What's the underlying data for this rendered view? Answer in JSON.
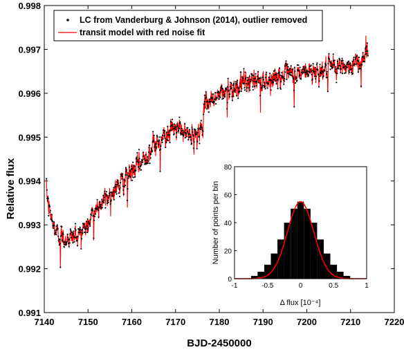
{
  "chart_data": [
    {
      "type": "line",
      "title": "",
      "xlabel": "BJD-2450000",
      "ylabel": "Relative flux",
      "xlim": [
        7140,
        7220
      ],
      "ylim": [
        0.991,
        0.998
      ],
      "xticks": [
        "7140",
        "7150",
        "7160",
        "7170",
        "7180",
        "7190",
        "7200",
        "7210",
        "7220"
      ],
      "yticks": [
        "0.991",
        "0.992",
        "0.993",
        "0.994",
        "0.995",
        "0.996",
        "0.997",
        "0.998"
      ],
      "legend_position": "top-left",
      "grid": false,
      "series": [
        {
          "name": "LC from Vanderburg & Johnson (2014), outlier removed",
          "style": "points",
          "color": "#000000",
          "x": [
            7140.5,
            7141,
            7142,
            7143,
            7144,
            7146,
            7148,
            7150,
            7152,
            7154,
            7156,
            7158,
            7160,
            7162,
            7164,
            7166,
            7168,
            7170,
            7172,
            7174,
            7176,
            7177,
            7179,
            7182,
            7185,
            7188,
            7191,
            7194,
            7197,
            7200,
            7203,
            7206,
            7209,
            7212,
            7214
          ],
          "y": [
            0.9938,
            0.9934,
            0.993,
            0.9928,
            0.9927,
            0.9927,
            0.9928,
            0.993,
            0.9934,
            0.9936,
            0.9938,
            0.994,
            0.9942,
            0.9944,
            0.9947,
            0.9949,
            0.9951,
            0.9952,
            0.9951,
            0.995,
            0.9952,
            0.9958,
            0.9959,
            0.9961,
            0.9962,
            0.9963,
            0.9963,
            0.9964,
            0.9964,
            0.9965,
            0.9965,
            0.9966,
            0.9966,
            0.9967,
            0.997
          ]
        },
        {
          "name": "transit model with red noise fit",
          "style": "line",
          "color": "#ff0000",
          "x": [
            7140.5,
            7141,
            7142,
            7143,
            7144,
            7146,
            7148,
            7150,
            7152,
            7154,
            7156,
            7158,
            7160,
            7162,
            7164,
            7166,
            7168,
            7170,
            7172,
            7174,
            7176,
            7177,
            7179,
            7182,
            7185,
            7188,
            7191,
            7194,
            7197,
            7200,
            7203,
            7206,
            7209,
            7212,
            7214
          ],
          "y": [
            0.9938,
            0.9934,
            0.993,
            0.9928,
            0.9927,
            0.9927,
            0.9928,
            0.993,
            0.9934,
            0.9936,
            0.9938,
            0.994,
            0.9942,
            0.9944,
            0.9947,
            0.9949,
            0.9951,
            0.9952,
            0.9951,
            0.995,
            0.9952,
            0.9958,
            0.9959,
            0.9961,
            0.9962,
            0.9963,
            0.9963,
            0.9964,
            0.9964,
            0.9965,
            0.9965,
            0.9966,
            0.9966,
            0.9967,
            0.997
          ]
        }
      ],
      "transits": [
        {
          "x": 7143.7,
          "depth": 0.0006
        },
        {
          "x": 7151.3,
          "depth": 0.0007
        },
        {
          "x": 7159.0,
          "depth": 0.0007
        },
        {
          "x": 7166.5,
          "depth": 0.0007
        },
        {
          "x": 7174.2,
          "depth": 0.0007
        },
        {
          "x": 7181.8,
          "depth": 0.0008
        },
        {
          "x": 7189.4,
          "depth": 0.0006
        },
        {
          "x": 7197.1,
          "depth": 0.0008
        },
        {
          "x": 7204.8,
          "depth": 0.0008
        },
        {
          "x": 7212.4,
          "depth": 0.0006
        }
      ]
    },
    {
      "type": "bar",
      "title": "",
      "xlabel": "Δ flux [10⁻⁴]",
      "ylabel": "Number of points per bin",
      "xlim": [
        -1,
        1
      ],
      "ylim": [
        0,
        80
      ],
      "xticks": [
        "-1",
        "-0.5",
        "0",
        "0.5",
        "1"
      ],
      "yticks": [
        "0",
        "20",
        "40",
        "60",
        "80"
      ],
      "histogram": {
        "color": "#000000",
        "bin_centers": [
          -0.7,
          -0.6,
          -0.5,
          -0.4,
          -0.3,
          -0.2,
          -0.1,
          0.0,
          0.1,
          0.2,
          0.3,
          0.4,
          0.5,
          0.6,
          0.7
        ],
        "counts": [
          2,
          5,
          10,
          18,
          28,
          40,
          50,
          55,
          50,
          40,
          28,
          18,
          10,
          5,
          2
        ]
      },
      "fit": {
        "type": "gaussian",
        "color": "#ff0000",
        "mean": 0.0,
        "sigma": 0.2,
        "amplitude": 55
      }
    }
  ]
}
